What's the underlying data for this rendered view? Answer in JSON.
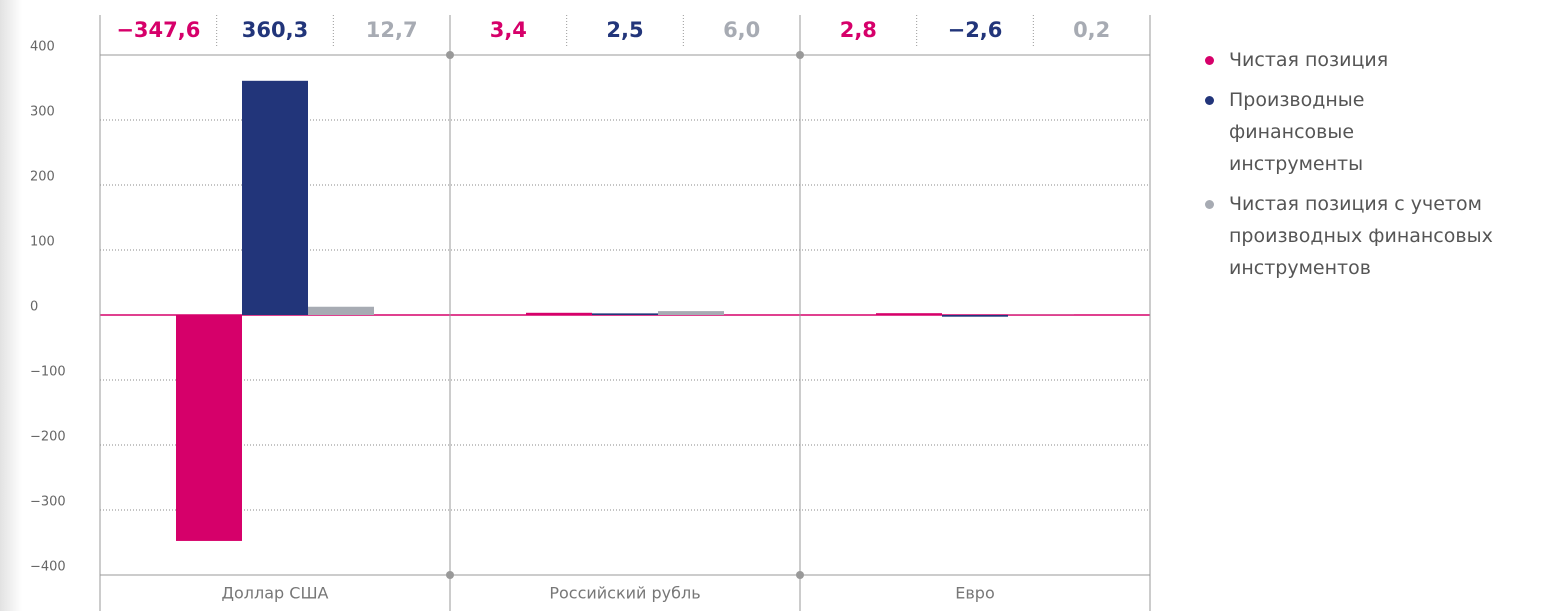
{
  "chart_data": {
    "type": "bar",
    "categories": [
      "Доллар США",
      "Российский рубль",
      "Евро"
    ],
    "series": [
      {
        "name": "Чистая позиция",
        "color": "#d6006a",
        "values": [
          -347.6,
          3.4,
          2.8
        ],
        "value_labels": [
          "−347,6",
          "3,4",
          "2,8"
        ]
      },
      {
        "name": "Производные финансовые инструменты",
        "color": "#22357a",
        "values": [
          360.3,
          2.5,
          -2.6
        ],
        "value_labels": [
          "360,3",
          "2,5",
          "−2,6"
        ]
      },
      {
        "name": "Чистая позиция с учетом производных финансовых инструментов",
        "color": "#a7abb3",
        "values": [
          12.7,
          6.0,
          0.2
        ],
        "value_labels": [
          "12,7",
          "6,0",
          "0,2"
        ]
      }
    ],
    "ylim": [
      -400,
      400
    ],
    "yticks": [
      400,
      300,
      200,
      100,
      0,
      {
        "value": -100,
        "label": "−100"
      },
      {
        "value": -200,
        "label": "−200"
      },
      {
        "value": -300,
        "label": "−300"
      },
      {
        "value": -400,
        "label": "−400"
      }
    ],
    "grid": true,
    "legend": "right"
  }
}
